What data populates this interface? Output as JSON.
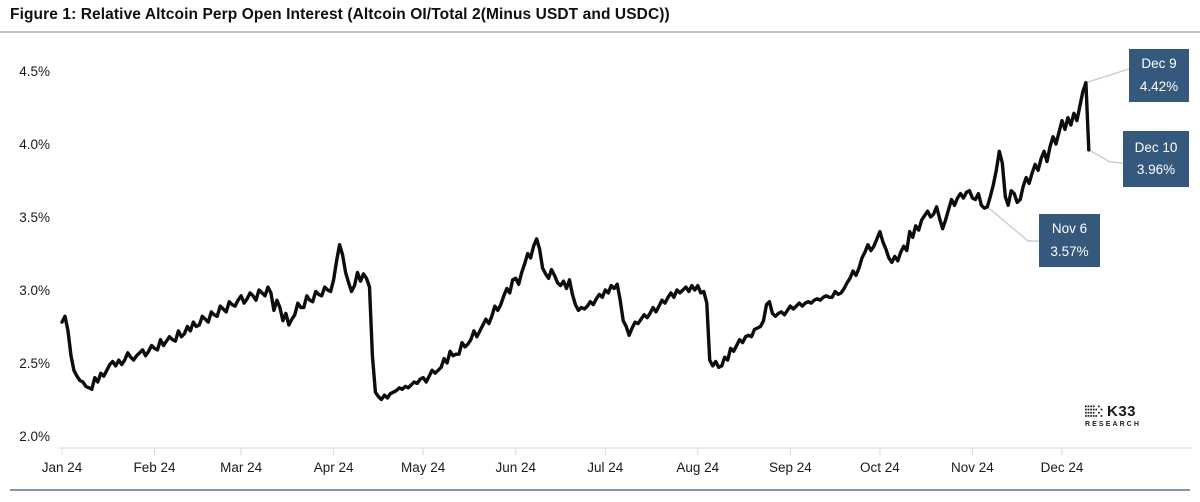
{
  "header": {
    "title": "Figure 1: Relative Altcoin Perp Open Interest (Altcoin OI/Total 2(Minus USDT and USDC))"
  },
  "branding": {
    "name": "K33",
    "sub": "RESEARCH"
  },
  "chart_data": {
    "type": "line",
    "title": "Figure 1: Relative Altcoin Perp Open Interest (Altcoin OI/Total 2(Minus USDT and USDC))",
    "unit": "%",
    "ylim": [
      2.0,
      4.5
    ],
    "grid": false,
    "line_color": "#0d0d0d",
    "axis_color": "#d9d9d9",
    "text_color": "#1a1a1a",
    "annotation_box_color": "#35597C",
    "connector_color": "#c9cdd2",
    "y_ticks": [
      "4.5%",
      "4.0%",
      "3.5%",
      "3.0%",
      "2.5%",
      "2.0%"
    ],
    "y_tick_values": [
      4.5,
      4.0,
      3.5,
      3.0,
      2.5,
      2.0
    ],
    "x_ticks": [
      "Jan 24",
      "Feb 24",
      "Mar 24",
      "Apr 24",
      "May 24",
      "Jun 24",
      "Jul 24",
      "Aug 24",
      "Sep 24",
      "Oct 24",
      "Nov 24",
      "Dec 24"
    ],
    "months": [
      "Jan",
      "Feb",
      "Mar",
      "Apr",
      "May",
      "Jun",
      "Jul",
      "Aug",
      "Sep",
      "Oct",
      "Nov",
      "Dec"
    ],
    "series_by_month": {
      "Jan": [
        2.78,
        2.82,
        2.72,
        2.55,
        2.45,
        2.41,
        2.38,
        2.37,
        2.34,
        2.33,
        2.32,
        2.4,
        2.37,
        2.43,
        2.41,
        2.45,
        2.49,
        2.51,
        2.48,
        2.52,
        2.49,
        2.52,
        2.57,
        2.54,
        2.52,
        2.55,
        2.57,
        2.59,
        2.55,
        2.58,
        2.62
      ],
      "Feb": [
        2.6,
        2.59,
        2.66,
        2.62,
        2.65,
        2.68,
        2.66,
        2.65,
        2.72,
        2.68,
        2.7,
        2.75,
        2.72,
        2.78,
        2.75,
        2.76,
        2.82,
        2.8,
        2.78,
        2.85,
        2.83,
        2.82,
        2.89,
        2.87,
        2.85,
        2.92,
        2.9,
        2.89,
        2.93
      ],
      "Mar": [
        2.96,
        2.91,
        2.94,
        2.98,
        2.96,
        2.93,
        3.0,
        2.98,
        2.96,
        3.02,
        2.98,
        2.86,
        2.93,
        2.88,
        2.79,
        2.84,
        2.76,
        2.8,
        2.83,
        2.91,
        2.88,
        2.88,
        2.96,
        2.93,
        2.92,
        2.99,
        2.97,
        2.96,
        3.02,
        3.0,
        2.99
      ],
      "Apr": [
        3.07,
        3.2,
        3.31,
        3.24,
        3.12,
        3.05,
        2.99,
        3.03,
        3.12,
        3.06,
        3.11,
        3.08,
        3.02,
        2.55,
        2.3,
        2.27,
        2.25,
        2.28,
        2.26,
        2.29,
        2.3,
        2.31,
        2.33,
        2.32,
        2.34,
        2.33,
        2.35,
        2.37,
        2.36,
        2.39
      ],
      "May": [
        2.4,
        2.37,
        2.41,
        2.45,
        2.43,
        2.45,
        2.47,
        2.53,
        2.5,
        2.58,
        2.55,
        2.56,
        2.56,
        2.64,
        2.61,
        2.63,
        2.66,
        2.72,
        2.68,
        2.72,
        2.76,
        2.8,
        2.77,
        2.82,
        2.89,
        2.86,
        2.9,
        2.96,
        3.01,
        2.98,
        3.07
      ],
      "Jun": [
        3.08,
        3.04,
        3.12,
        3.18,
        3.25,
        3.22,
        3.3,
        3.35,
        3.28,
        3.15,
        3.11,
        3.08,
        3.14,
        3.1,
        3.05,
        3.03,
        3.06,
        3.01,
        3.07,
        2.97,
        2.9,
        2.86,
        2.88,
        2.87,
        2.89,
        2.92,
        2.9,
        2.94,
        2.97,
        2.95
      ],
      "Jul": [
        3.0,
        2.98,
        3.03,
        3.01,
        3.04,
        2.93,
        2.79,
        2.75,
        2.69,
        2.74,
        2.78,
        2.77,
        2.8,
        2.83,
        2.81,
        2.84,
        2.88,
        2.85,
        2.89,
        2.93,
        2.91,
        2.95,
        2.98,
        2.95,
        3.0,
        2.98,
        3.0,
        3.02,
        2.99,
        3.03,
        3.0
      ],
      "Aug": [
        3.03,
        2.98,
        2.99,
        2.91,
        2.52,
        2.48,
        2.51,
        2.47,
        2.48,
        2.54,
        2.52,
        2.6,
        2.58,
        2.62,
        2.66,
        2.64,
        2.68,
        2.69,
        2.68,
        2.73,
        2.74,
        2.75,
        2.79,
        2.9,
        2.92,
        2.84,
        2.82,
        2.84,
        2.85,
        2.83,
        2.86
      ],
      "Sep": [
        2.89,
        2.87,
        2.89,
        2.91,
        2.89,
        2.91,
        2.92,
        2.91,
        2.93,
        2.94,
        2.93,
        2.95,
        2.96,
        2.95,
        2.95,
        2.99,
        2.97,
        2.98,
        3.01,
        3.05,
        3.08,
        3.13,
        3.1,
        3.15,
        3.22,
        3.26,
        3.31,
        3.27,
        3.3,
        3.35
      ],
      "Oct": [
        3.4,
        3.33,
        3.28,
        3.22,
        3.19,
        3.23,
        3.2,
        3.26,
        3.3,
        3.27,
        3.4,
        3.36,
        3.44,
        3.41,
        3.48,
        3.51,
        3.54,
        3.5,
        3.52,
        3.57,
        3.49,
        3.42,
        3.48,
        3.55,
        3.62,
        3.58,
        3.63,
        3.66,
        3.63,
        3.67,
        3.68
      ],
      "Nov": [
        3.63,
        3.62,
        3.66,
        3.58,
        3.56,
        3.57,
        3.64,
        3.72,
        3.82,
        3.95,
        3.87,
        3.64,
        3.58,
        3.68,
        3.66,
        3.6,
        3.62,
        3.71,
        3.77,
        3.73,
        3.8,
        3.86,
        3.82,
        3.9,
        3.95,
        3.88,
        3.98,
        4.05,
        4.0,
        4.08
      ],
      "Dec": [
        4.16,
        4.1,
        4.18,
        4.13,
        4.21,
        4.16,
        4.26,
        4.36,
        4.42,
        3.96
      ]
    },
    "annotations": [
      {
        "date": "Dec 9",
        "value_label": "4.42%",
        "value": 4.42,
        "anchor_month": "Dec",
        "anchor_day": 9
      },
      {
        "date": "Dec 10",
        "value_label": "3.96%",
        "value": 3.96,
        "anchor_month": "Dec",
        "anchor_day": 10
      },
      {
        "date": "Nov 6",
        "value_label": "3.57%",
        "value": 3.57,
        "anchor_month": "Nov",
        "anchor_day": 6
      }
    ]
  }
}
